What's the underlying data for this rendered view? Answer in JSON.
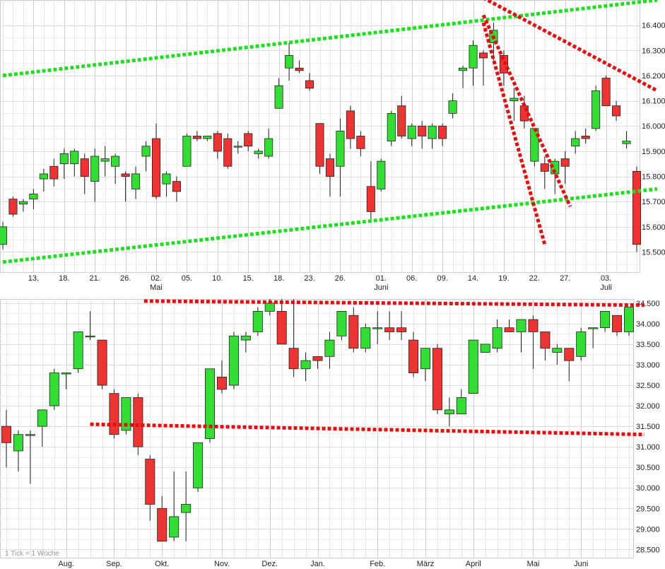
{
  "chart_data": [
    {
      "type": "candlestick",
      "interval": "",
      "y_ticks": [
        "16.400",
        "16.300",
        "16.200",
        "16.100",
        "16.000",
        "15.900",
        "15.800",
        "15.700",
        "15.600",
        "15.500"
      ],
      "ylim": [
        15.42,
        16.5
      ],
      "x_ticks": [
        {
          "label": "13.",
          "sub": "",
          "at": 3
        },
        {
          "label": "18.",
          "sub": "",
          "at": 6
        },
        {
          "label": "21.",
          "sub": "",
          "at": 9
        },
        {
          "label": "26.",
          "sub": "",
          "at": 12
        },
        {
          "label": "02.",
          "sub": "Mai",
          "at": 15
        },
        {
          "label": "05.",
          "sub": "",
          "at": 18
        },
        {
          "label": "10.",
          "sub": "",
          "at": 21
        },
        {
          "label": "15.",
          "sub": "",
          "at": 24
        },
        {
          "label": "18.",
          "sub": "",
          "at": 27
        },
        {
          "label": "23.",
          "sub": "",
          "at": 30
        },
        {
          "label": "26.",
          "sub": "",
          "at": 33
        },
        {
          "label": "01.",
          "sub": "Juni",
          "at": 37
        },
        {
          "label": "06.",
          "sub": "",
          "at": 40
        },
        {
          "label": "09.",
          "sub": "",
          "at": 43
        },
        {
          "label": "14.",
          "sub": "",
          "at": 46
        },
        {
          "label": "19.",
          "sub": "",
          "at": 49
        },
        {
          "label": "22.",
          "sub": "",
          "at": 52
        },
        {
          "label": "27.",
          "sub": "",
          "at": 55
        },
        {
          "label": "03.",
          "sub": "Juli",
          "at": 59
        }
      ],
      "candles": [
        {
          "o": 15.53,
          "h": 15.62,
          "l": 15.51,
          "c": 15.6
        },
        {
          "o": 15.71,
          "h": 15.72,
          "l": 15.64,
          "c": 15.65
        },
        {
          "o": 15.69,
          "h": 15.71,
          "l": 15.66,
          "c": 15.7
        },
        {
          "o": 15.71,
          "h": 15.75,
          "l": 15.67,
          "c": 15.73
        },
        {
          "o": 15.79,
          "h": 15.83,
          "l": 15.74,
          "c": 15.81
        },
        {
          "o": 15.84,
          "h": 15.87,
          "l": 15.76,
          "c": 15.79
        },
        {
          "o": 15.85,
          "h": 15.91,
          "l": 15.79,
          "c": 15.89
        },
        {
          "o": 15.85,
          "h": 15.91,
          "l": 15.8,
          "c": 15.9
        },
        {
          "o": 15.87,
          "h": 15.89,
          "l": 15.73,
          "c": 15.8
        },
        {
          "o": 15.78,
          "h": 15.91,
          "l": 15.7,
          "c": 15.88
        },
        {
          "o": 15.86,
          "h": 15.92,
          "l": 15.8,
          "c": 15.87
        },
        {
          "o": 15.84,
          "h": 15.89,
          "l": 15.77,
          "c": 15.88
        },
        {
          "o": 15.81,
          "h": 15.82,
          "l": 15.7,
          "c": 15.8
        },
        {
          "o": 15.75,
          "h": 15.84,
          "l": 15.71,
          "c": 15.81
        },
        {
          "o": 15.88,
          "h": 15.94,
          "l": 15.82,
          "c": 15.92
        },
        {
          "o": 15.95,
          "h": 16.01,
          "l": 15.71,
          "c": 15.72
        },
        {
          "o": 15.77,
          "h": 15.82,
          "l": 15.72,
          "c": 15.81
        },
        {
          "o": 15.78,
          "h": 15.8,
          "l": 15.7,
          "c": 15.74
        },
        {
          "o": 15.84,
          "h": 15.97,
          "l": 15.84,
          "c": 15.96
        },
        {
          "o": 15.96,
          "h": 15.98,
          "l": 15.94,
          "c": 15.95
        },
        {
          "o": 15.95,
          "h": 15.96,
          "l": 15.94,
          "c": 15.96
        },
        {
          "o": 15.97,
          "h": 15.98,
          "l": 15.87,
          "c": 15.9
        },
        {
          "o": 15.95,
          "h": 15.97,
          "l": 15.83,
          "c": 15.84
        },
        {
          "o": 15.92,
          "h": 15.94,
          "l": 15.89,
          "c": 15.92
        },
        {
          "o": 15.97,
          "h": 15.98,
          "l": 15.9,
          "c": 15.92
        },
        {
          "o": 15.89,
          "h": 15.91,
          "l": 15.87,
          "c": 15.9
        },
        {
          "o": 15.88,
          "h": 15.99,
          "l": 15.87,
          "c": 15.95
        },
        {
          "o": 16.07,
          "h": 16.19,
          "l": 16.07,
          "c": 16.16
        },
        {
          "o": 16.23,
          "h": 16.33,
          "l": 16.18,
          "c": 16.28
        },
        {
          "o": 16.23,
          "h": 16.26,
          "l": 16.21,
          "c": 16.22
        },
        {
          "o": 16.18,
          "h": 16.21,
          "l": 16.14,
          "c": 16.15
        },
        {
          "o": 16.01,
          "h": 16.01,
          "l": 15.81,
          "c": 15.84
        },
        {
          "o": 15.87,
          "h": 15.89,
          "l": 15.72,
          "c": 15.8
        },
        {
          "o": 15.84,
          "h": 16.03,
          "l": 15.72,
          "c": 15.98
        },
        {
          "o": 16.06,
          "h": 16.08,
          "l": 15.91,
          "c": 15.95
        },
        {
          "o": 15.96,
          "h": 15.98,
          "l": 15.88,
          "c": 15.91
        },
        {
          "o": 15.76,
          "h": 15.86,
          "l": 15.63,
          "c": 15.66
        },
        {
          "o": 15.75,
          "h": 15.87,
          "l": 15.74,
          "c": 15.86
        },
        {
          "o": 15.94,
          "h": 16.06,
          "l": 15.92,
          "c": 16.05
        },
        {
          "o": 16.08,
          "h": 16.12,
          "l": 15.95,
          "c": 15.96
        },
        {
          "o": 15.95,
          "h": 16.01,
          "l": 15.92,
          "c": 16.0
        },
        {
          "o": 16.0,
          "h": 16.02,
          "l": 15.91,
          "c": 15.96
        },
        {
          "o": 15.95,
          "h": 16.01,
          "l": 15.91,
          "c": 16.0
        },
        {
          "o": 16.0,
          "h": 16.01,
          "l": 15.92,
          "c": 15.95
        },
        {
          "o": 16.05,
          "h": 16.13,
          "l": 16.03,
          "c": 16.1
        },
        {
          "o": 16.22,
          "h": 16.24,
          "l": 16.15,
          "c": 16.23
        },
        {
          "o": 16.23,
          "h": 16.34,
          "l": 16.16,
          "c": 16.32
        },
        {
          "o": 16.29,
          "h": 16.3,
          "l": 16.16,
          "c": 16.27
        },
        {
          "o": 16.33,
          "h": 16.41,
          "l": 16.26,
          "c": 16.38
        },
        {
          "o": 16.28,
          "h": 16.3,
          "l": 16.16,
          "c": 16.21
        },
        {
          "o": 16.1,
          "h": 16.15,
          "l": 16.02,
          "c": 16.11
        },
        {
          "o": 16.08,
          "h": 16.12,
          "l": 15.99,
          "c": 16.02
        },
        {
          "o": 15.86,
          "h": 15.99,
          "l": 15.84,
          "c": 15.99
        },
        {
          "o": 15.85,
          "h": 15.88,
          "l": 15.75,
          "c": 15.82
        },
        {
          "o": 15.81,
          "h": 15.87,
          "l": 15.73,
          "c": 15.86
        },
        {
          "o": 15.87,
          "h": 15.9,
          "l": 15.77,
          "c": 15.84
        },
        {
          "o": 15.92,
          "h": 15.98,
          "l": 15.89,
          "c": 15.95
        },
        {
          "o": 15.96,
          "h": 15.99,
          "l": 15.93,
          "c": 15.95
        },
        {
          "o": 15.99,
          "h": 16.16,
          "l": 15.98,
          "c": 16.14
        },
        {
          "o": 16.19,
          "h": 16.2,
          "l": 16.08,
          "c": 16.08
        },
        {
          "o": 16.08,
          "h": 16.1,
          "l": 16.02,
          "c": 16.04
        },
        {
          "o": 15.93,
          "h": 15.98,
          "l": 15.91,
          "c": 15.94
        },
        {
          "o": 15.82,
          "h": 15.84,
          "l": 15.5,
          "c": 15.53
        }
      ],
      "trendlines": [
        {
          "color": "green",
          "from": [
            0,
            16.2
          ],
          "to": [
            64,
            16.5
          ]
        },
        {
          "color": "green",
          "from": [
            0,
            15.46
          ],
          "to": [
            64,
            15.75
          ]
        },
        {
          "color": "red",
          "from": [
            46,
            16.53
          ],
          "to": [
            64,
            16.14
          ]
        },
        {
          "color": "red",
          "from": [
            47,
            16.44
          ],
          "to": [
            55.5,
            15.68
          ]
        },
        {
          "color": "red",
          "from": [
            47,
            16.41
          ],
          "to": [
            53,
            15.53
          ]
        }
      ]
    },
    {
      "type": "candlestick",
      "interval": "1 Tick = 1 Woche",
      "y_ticks": [
        "34.500",
        "34.000",
        "33.500",
        "33.000",
        "32.500",
        "32.000",
        "31.500",
        "31.000",
        "30.500",
        "30.000",
        "29.500",
        "29.000",
        "28.500"
      ],
      "ylim": [
        28.3,
        34.6
      ],
      "x_ticks": [
        {
          "label": "Aug.",
          "sub": "",
          "at": 5
        },
        {
          "label": "Sep.",
          "sub": "",
          "at": 9
        },
        {
          "label": "Okt.",
          "sub": "",
          "at": 13
        },
        {
          "label": "Nov.",
          "sub": "",
          "at": 18
        },
        {
          "label": "Dez.",
          "sub": "",
          "at": 22
        },
        {
          "label": "Jan.",
          "sub": "",
          "at": 26
        },
        {
          "label": "Feb.",
          "sub": "",
          "at": 31
        },
        {
          "label": "März",
          "sub": "",
          "at": 35
        },
        {
          "label": "April",
          "sub": "",
          "at": 39
        },
        {
          "label": "Mai",
          "sub": "",
          "at": 44
        },
        {
          "label": "Juni",
          "sub": "",
          "at": 48
        }
      ],
      "candles": [
        {
          "o": 31.5,
          "h": 31.9,
          "l": 30.5,
          "c": 31.1
        },
        {
          "o": 30.9,
          "h": 31.4,
          "l": 30.4,
          "c": 31.3
        },
        {
          "o": 31.3,
          "h": 31.4,
          "l": 30.1,
          "c": 31.3
        },
        {
          "o": 31.5,
          "h": 31.9,
          "l": 31.0,
          "c": 31.9
        },
        {
          "o": 32.0,
          "h": 32.9,
          "l": 31.9,
          "c": 32.8
        },
        {
          "o": 32.8,
          "h": 32.8,
          "l": 32.4,
          "c": 32.8
        },
        {
          "o": 32.9,
          "h": 33.8,
          "l": 32.8,
          "c": 33.8
        },
        {
          "o": 33.7,
          "h": 34.3,
          "l": 33.6,
          "c": 33.7
        },
        {
          "o": 33.6,
          "h": 33.6,
          "l": 32.4,
          "c": 32.5
        },
        {
          "o": 32.3,
          "h": 32.4,
          "l": 31.2,
          "c": 31.3
        },
        {
          "o": 31.4,
          "h": 32.2,
          "l": 31.3,
          "c": 32.2
        },
        {
          "o": 32.2,
          "h": 32.3,
          "l": 30.8,
          "c": 31.0
        },
        {
          "o": 30.7,
          "h": 30.8,
          "l": 29.2,
          "c": 29.6
        },
        {
          "o": 29.5,
          "h": 29.8,
          "l": 28.7,
          "c": 28.7
        },
        {
          "o": 28.8,
          "h": 30.4,
          "l": 28.7,
          "c": 29.3
        },
        {
          "o": 29.4,
          "h": 30.4,
          "l": 28.7,
          "c": 29.6
        },
        {
          "o": 30.0,
          "h": 31.1,
          "l": 29.9,
          "c": 31.1
        },
        {
          "o": 31.2,
          "h": 32.9,
          "l": 31.1,
          "c": 32.9
        },
        {
          "o": 32.7,
          "h": 33.1,
          "l": 32.3,
          "c": 32.4
        },
        {
          "o": 32.5,
          "h": 33.8,
          "l": 32.4,
          "c": 33.7
        },
        {
          "o": 33.6,
          "h": 33.8,
          "l": 33.3,
          "c": 33.7
        },
        {
          "o": 33.8,
          "h": 34.4,
          "l": 33.7,
          "c": 34.3
        },
        {
          "o": 34.3,
          "h": 34.6,
          "l": 34.2,
          "c": 34.5
        },
        {
          "o": 34.3,
          "h": 34.6,
          "l": 33.5,
          "c": 33.5
        },
        {
          "o": 33.4,
          "h": 34.6,
          "l": 32.7,
          "c": 32.9
        },
        {
          "o": 32.9,
          "h": 33.3,
          "l": 32.6,
          "c": 33.1
        },
        {
          "o": 33.2,
          "h": 33.2,
          "l": 32.9,
          "c": 33.1
        },
        {
          "o": 33.2,
          "h": 33.8,
          "l": 32.9,
          "c": 33.6
        },
        {
          "o": 33.7,
          "h": 34.3,
          "l": 33.6,
          "c": 34.3
        },
        {
          "o": 34.2,
          "h": 34.4,
          "l": 33.3,
          "c": 33.4
        },
        {
          "o": 33.4,
          "h": 34.0,
          "l": 33.3,
          "c": 33.9
        },
        {
          "o": 33.9,
          "h": 34.3,
          "l": 33.5,
          "c": 33.9
        },
        {
          "o": 33.9,
          "h": 34.3,
          "l": 33.6,
          "c": 33.8
        },
        {
          "o": 33.9,
          "h": 34.3,
          "l": 33.6,
          "c": 33.8
        },
        {
          "o": 33.6,
          "h": 33.8,
          "l": 32.7,
          "c": 32.8
        },
        {
          "o": 32.9,
          "h": 33.4,
          "l": 32.6,
          "c": 33.4
        },
        {
          "o": 33.4,
          "h": 33.5,
          "l": 31.8,
          "c": 31.9
        },
        {
          "o": 31.8,
          "h": 32.2,
          "l": 31.5,
          "c": 31.9
        },
        {
          "o": 31.8,
          "h": 32.4,
          "l": 31.8,
          "c": 32.2
        },
        {
          "o": 32.3,
          "h": 33.6,
          "l": 32.3,
          "c": 33.6
        },
        {
          "o": 33.3,
          "h": 33.5,
          "l": 33.3,
          "c": 33.5
        },
        {
          "o": 33.4,
          "h": 34.1,
          "l": 33.3,
          "c": 33.9
        },
        {
          "o": 33.9,
          "h": 34.1,
          "l": 33.8,
          "c": 33.8
        },
        {
          "o": 33.8,
          "h": 34.1,
          "l": 33.3,
          "c": 34.1
        },
        {
          "o": 34.1,
          "h": 34.2,
          "l": 32.9,
          "c": 33.8
        },
        {
          "o": 33.8,
          "h": 33.8,
          "l": 33.1,
          "c": 33.4
        },
        {
          "o": 33.3,
          "h": 33.5,
          "l": 33.0,
          "c": 33.4
        },
        {
          "o": 33.4,
          "h": 33.4,
          "l": 32.6,
          "c": 33.1
        },
        {
          "o": 33.2,
          "h": 33.9,
          "l": 33.1,
          "c": 33.8
        },
        {
          "o": 33.9,
          "h": 33.9,
          "l": 33.4,
          "c": 33.9
        },
        {
          "o": 33.9,
          "h": 34.3,
          "l": 33.8,
          "c": 34.3
        },
        {
          "o": 34.2,
          "h": 34.2,
          "l": 33.7,
          "c": 33.8
        },
        {
          "o": 33.8,
          "h": 34.4,
          "l": 33.7,
          "c": 34.4
        }
      ],
      "trendlines": [
        {
          "color": "red",
          "from": [
            11.5,
            34.55
          ],
          "to": [
            53.3,
            34.45
          ]
        },
        {
          "color": "red",
          "from": [
            7,
            31.55
          ],
          "to": [
            53.3,
            31.3
          ]
        }
      ]
    }
  ],
  "colors": {
    "up": "#33dd33",
    "down": "#ee3333",
    "trend_green": "#22dd22",
    "trend_red": "#dd1111",
    "grid": "#dddddd"
  }
}
